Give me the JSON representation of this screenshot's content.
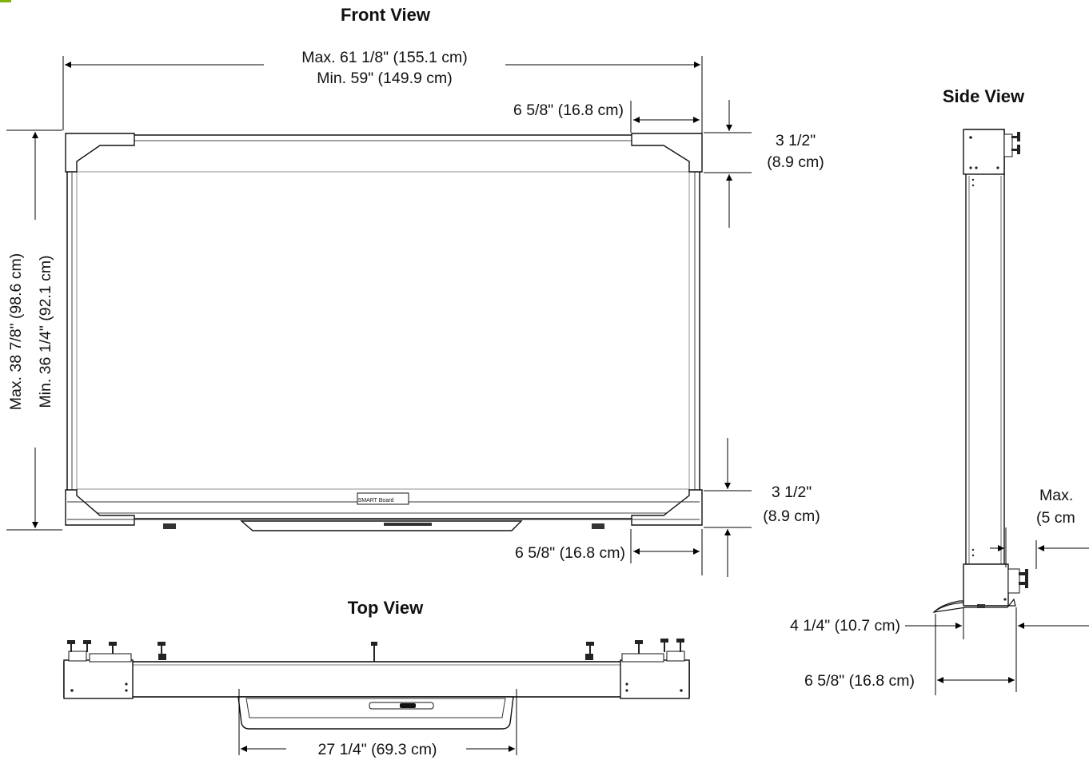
{
  "views": {
    "front": "Front View",
    "side": "Side View",
    "top": "Top View"
  },
  "dimensions": {
    "front_width_max": "Max. 61 1/8\" (155.1 cm)",
    "front_width_min": "Min. 59\" (149.9 cm)",
    "front_height_max": "Max. 38 7/8\" (98.6 cm)",
    "front_height_min": "Min. 36 1/4\" (92.1 cm)",
    "top_corner_width": "6 5/8\" (16.8 cm)",
    "top_corner_height_1": "3 1/2\"",
    "top_corner_height_2": "(8.9 cm)",
    "bottom_corner_height_1": "3 1/2\"",
    "bottom_corner_height_2": "(8.9 cm)",
    "bottom_corner_width": "6 5/8\" (16.8 cm)",
    "tray_width": "27 1/4\" (69.3 cm)",
    "side_depth_upper": "4 1/4\" (10.7 cm)",
    "side_depth_lower": "6 5/8\" (16.8 cm)",
    "side_max_1": "Max.",
    "side_max_2": "(5 cm"
  },
  "logo_text": "SMART Board"
}
